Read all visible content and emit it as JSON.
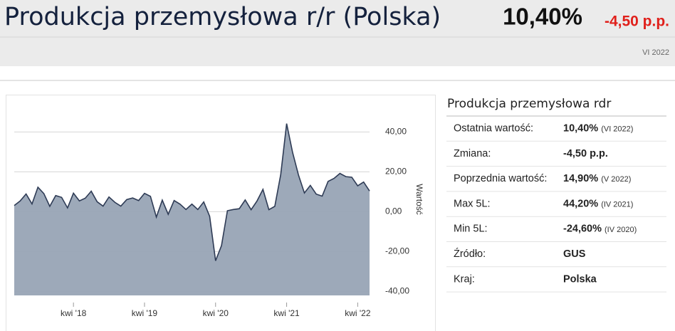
{
  "header": {
    "title": "Produkcja przemysłowa r/r (Polska)",
    "value": "10,40%",
    "change": "-4,50 p.p.",
    "period": "VI 2022"
  },
  "chart_data": {
    "type": "area",
    "categories": [
      null,
      null,
      null,
      null,
      null,
      null,
      null,
      null,
      null,
      null,
      "kwi '18",
      null,
      null,
      null,
      null,
      null,
      null,
      null,
      null,
      null,
      null,
      null,
      "kwi '19",
      null,
      null,
      null,
      null,
      null,
      null,
      null,
      null,
      null,
      null,
      null,
      "kwi '20",
      null,
      null,
      null,
      null,
      null,
      null,
      null,
      null,
      null,
      null,
      null,
      "kwi '21",
      null,
      null,
      null,
      null,
      null,
      null,
      null,
      null,
      null,
      null,
      null,
      "kwi '22",
      null,
      null
    ],
    "values": [
      3.1,
      5.4,
      8.9,
      3.9,
      12.3,
      9.1,
      2.7,
      8.1,
      7.2,
      1.9,
      9.3,
      5.4,
      6.8,
      10.3,
      5.0,
      2.8,
      7.4,
      4.7,
      2.8,
      6.1,
      6.9,
      5.6,
      9.2,
      7.7,
      -2.7,
      5.8,
      -1.3,
      5.6,
      3.8,
      1.1,
      3.8,
      1.1,
      4.9,
      -2.3,
      -24.6,
      -17.0,
      0.5,
      1.1,
      1.5,
      5.9,
      1.0,
      5.4,
      11.2,
      1.0,
      2.7,
      18.6,
      44.2,
      29.8,
      18.4,
      9.4,
      13.2,
      8.8,
      7.8,
      15.2,
      16.7,
      19.2,
      17.6,
      17.3,
      13.0,
      14.9,
      10.4
    ],
    "color": "#98a4b5",
    "line_color": "#2e3b55",
    "y_label": "Wartość",
    "ylim": [
      -42,
      58
    ],
    "yticks": [
      {
        "value": -40,
        "label": "-40,00"
      },
      {
        "value": -20,
        "label": "-20,00"
      },
      {
        "value": 0,
        "label": "0,00"
      },
      {
        "value": 20,
        "label": "20,00"
      },
      {
        "value": 40,
        "label": "40,00"
      }
    ],
    "grid": true
  },
  "info": {
    "title": "Produkcja przemysłowa rdr",
    "rows": [
      {
        "label": "Ostatnia wartość:",
        "value": "10,40%",
        "period": "(VI 2022)"
      },
      {
        "label": "Zmiana:",
        "value": "-4,50 p.p."
      },
      {
        "label": "Poprzednia wartość:",
        "value": "14,90%",
        "period": "(V 2022)"
      },
      {
        "label": "Max 5L:",
        "value": "44,20%",
        "period": "(IV 2021)"
      },
      {
        "label": "Min 5L:",
        "value": "-24,60%",
        "period": "(IV 2020)"
      },
      {
        "label": "Źródło:",
        "value": "GUS"
      },
      {
        "label": "Kraj:",
        "value": "Polska"
      }
    ]
  }
}
